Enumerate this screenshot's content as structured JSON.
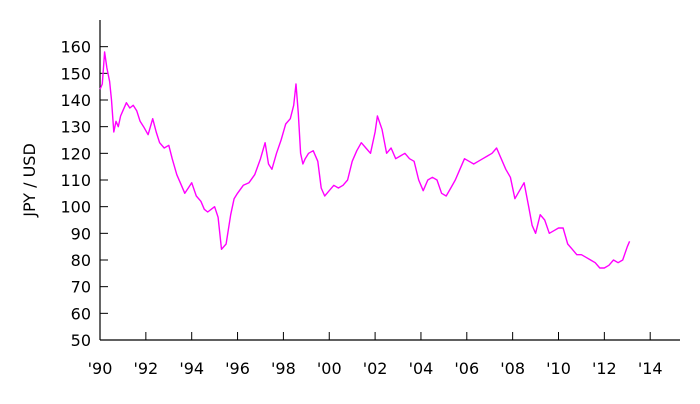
{
  "chart_data": {
    "type": "line",
    "title": "",
    "xlabel": "",
    "ylabel": "JPY / USD",
    "xlim": [
      1990,
      2015.3
    ],
    "ylim": [
      50,
      170
    ],
    "grid": false,
    "x_ticks": [
      1990,
      1992,
      1994,
      1996,
      1998,
      2000,
      2002,
      2004,
      2006,
      2008,
      2010,
      2012,
      2014
    ],
    "x_tick_labels": [
      "'90",
      "'92",
      "'94",
      "'96",
      "'98",
      "'00",
      "'02",
      "'04",
      "'06",
      "'08",
      "'10",
      "'12",
      "'14"
    ],
    "y_ticks": [
      50,
      60,
      70,
      80,
      90,
      100,
      110,
      120,
      130,
      140,
      150,
      160
    ],
    "y_tick_labels": [
      "50",
      "60",
      "70",
      "80",
      "90",
      "100",
      "110",
      "120",
      "130",
      "140",
      "150",
      "160"
    ],
    "series": [
      {
        "color": "#ff00ff",
        "x": [
          1990.0,
          1990.1,
          1990.2,
          1990.3,
          1990.42,
          1990.5,
          1990.6,
          1990.7,
          1990.8,
          1990.9,
          1991.0,
          1991.15,
          1991.3,
          1991.45,
          1991.6,
          1991.75,
          1991.9,
          1992.1,
          1992.3,
          1992.45,
          1992.6,
          1992.8,
          1993.0,
          1993.15,
          1993.35,
          1993.55,
          1993.7,
          1993.85,
          1994.0,
          1994.2,
          1994.4,
          1994.55,
          1994.7,
          1994.85,
          1995.0,
          1995.15,
          1995.3,
          1995.5,
          1995.7,
          1995.85,
          1996.0,
          1996.25,
          1996.5,
          1996.75,
          1997.0,
          1997.2,
          1997.35,
          1997.5,
          1997.7,
          1997.9,
          1998.1,
          1998.3,
          1998.45,
          1998.55,
          1998.65,
          1998.75,
          1998.85,
          1998.95,
          1999.1,
          1999.3,
          1999.5,
          1999.65,
          1999.8,
          2000.0,
          2000.2,
          2000.4,
          2000.6,
          2000.8,
          2001.0,
          2001.2,
          2001.4,
          2001.6,
          2001.8,
          2002.0,
          2002.1,
          2002.3,
          2002.5,
          2002.7,
          2002.9,
          2003.1,
          2003.3,
          2003.5,
          2003.7,
          2003.9,
          2004.1,
          2004.3,
          2004.5,
          2004.7,
          2004.9,
          2005.1,
          2005.3,
          2005.5,
          2005.7,
          2005.9,
          2006.1,
          2006.3,
          2006.5,
          2006.7,
          2006.9,
          2007.1,
          2007.3,
          2007.5,
          2007.7,
          2007.9,
          2008.1,
          2008.3,
          2008.5,
          2008.7,
          2008.85,
          2009.0,
          2009.2,
          2009.4,
          2009.6,
          2009.8,
          2010.0,
          2010.2,
          2010.4,
          2010.6,
          2010.8,
          2011.0,
          2011.2,
          2011.4,
          2011.6,
          2011.8,
          2012.0,
          2012.2,
          2012.4,
          2012.6,
          2012.8,
          2013.0,
          2013.1
        ],
        "y": [
          144,
          146,
          158,
          152,
          147,
          140,
          128,
          132,
          130,
          134,
          136,
          139,
          137,
          138,
          136,
          132,
          130,
          127,
          133,
          128,
          124,
          122,
          123,
          118,
          112,
          108,
          105,
          107,
          109,
          104,
          102,
          99,
          98,
          99,
          100,
          96,
          84,
          86,
          97,
          103,
          105,
          108,
          109,
          112,
          118,
          124,
          116,
          114,
          120,
          125,
          131,
          133,
          138,
          146,
          135,
          120,
          116,
          118,
          120,
          121,
          117,
          107,
          104,
          106,
          108,
          107,
          108,
          110,
          117,
          121,
          124,
          122,
          120,
          128,
          134,
          129,
          120,
          122,
          118,
          119,
          120,
          118,
          117,
          110,
          106,
          110,
          111,
          110,
          105,
          104,
          107,
          110,
          114,
          118,
          117,
          116,
          117,
          118,
          119,
          120,
          122,
          118,
          114,
          111,
          103,
          106,
          109,
          100,
          93,
          90,
          97,
          95,
          90,
          91,
          92,
          92,
          86,
          84,
          82,
          82,
          81,
          80,
          79,
          77,
          77,
          78,
          80,
          79,
          80,
          85,
          87
        ]
      }
    ]
  }
}
